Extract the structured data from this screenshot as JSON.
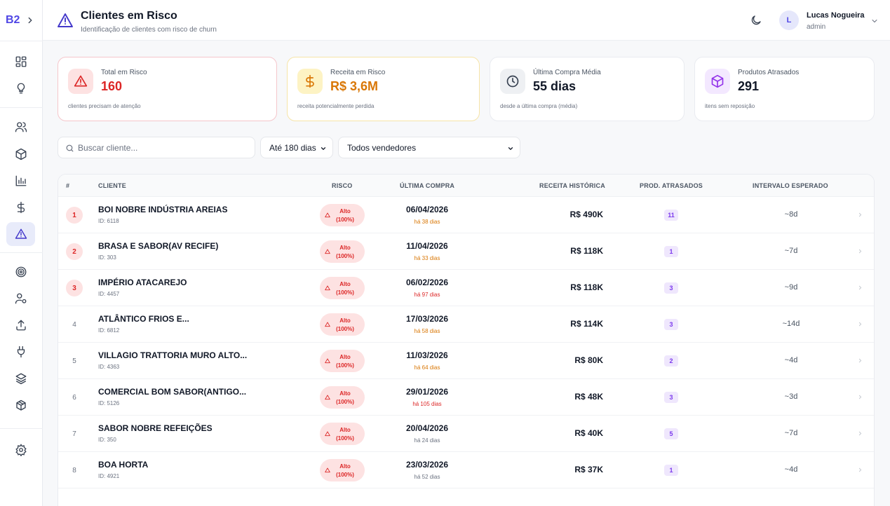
{
  "sidebar": {
    "brand": "B2",
    "items": [
      {
        "icon": "dashboard-icon"
      },
      {
        "icon": "lightbulb-icon"
      },
      {
        "icon": "users-icon"
      },
      {
        "icon": "package-icon"
      },
      {
        "icon": "bar-chart-icon"
      },
      {
        "icon": "dollar-icon"
      },
      {
        "icon": "alert-triangle-icon",
        "active": true
      },
      {
        "icon": "target-icon"
      },
      {
        "icon": "user-settings-icon"
      },
      {
        "icon": "upload-icon"
      },
      {
        "icon": "plug-icon"
      },
      {
        "icon": "layers-icon"
      },
      {
        "icon": "boxes-icon"
      },
      {
        "icon": "settings-icon"
      }
    ]
  },
  "header": {
    "title": "Clientes em Risco",
    "subtitle": "Identificação de clientes com risco de churn",
    "user": {
      "initial": "L",
      "name": "Lucas Nogueira",
      "role": "admin"
    }
  },
  "stats": [
    {
      "label": "Total em Risco",
      "value": "160",
      "foot": "clientes precisam de atenção",
      "color": "#dc2626"
    },
    {
      "label": "Receita em Risco",
      "value": "R$ 3,6M",
      "foot": "receita potencialmente perdida",
      "color": "#d97706"
    },
    {
      "label": "Última Compra Média",
      "value": "55 dias",
      "foot": "desde a última compra (média)",
      "color": "#111827"
    },
    {
      "label": "Produtos Atrasados",
      "value": "291",
      "foot": "itens sem reposição",
      "color": "#111827"
    }
  ],
  "filters": {
    "search_placeholder": "Buscar cliente...",
    "period": "Até 180 dias",
    "seller": "Todos vendedores"
  },
  "table": {
    "headers": {
      "num": "#",
      "client": "CLIENTE",
      "risk": "RISCO",
      "last": "ÚLTIMA COMPRA",
      "revenue": "RECEITA HISTÓRICA",
      "late": "PROD. ATRASADOS",
      "interval": "INTERVALO ESPERADO"
    },
    "rows": [
      {
        "rank": "1",
        "name": "BOI NOBRE INDÚSTRIA AREIAS",
        "id": "ID: 6118",
        "risk1": "Alto",
        "risk2": "(100%)",
        "date": "06/04/2026",
        "ago": "há 38 dias",
        "ago_color": "#d97706",
        "revenue": "R$ 490K",
        "late": "11",
        "interval": "~8d"
      },
      {
        "rank": "2",
        "name": "BRASA E SABOR(AV RECIFE)",
        "id": "ID: 303",
        "risk1": "Alto",
        "risk2": "(100%)",
        "date": "11/04/2026",
        "ago": "há 33 dias",
        "ago_color": "#d97706",
        "revenue": "R$ 118K",
        "late": "1",
        "interval": "~7d"
      },
      {
        "rank": "3",
        "name": "IMPÉRIO ATACAREJO",
        "id": "ID: 4457",
        "risk1": "Alto",
        "risk2": "(100%)",
        "date": "06/02/2026",
        "ago": "há 97 dias",
        "ago_color": "#dc2626",
        "revenue": "R$ 118K",
        "late": "3",
        "interval": "~9d"
      },
      {
        "rank": "4",
        "name": "ATLÂNTICO FRIOS E...",
        "id": "ID: 6812",
        "risk1": "Alto",
        "risk2": "(100%)",
        "date": "17/03/2026",
        "ago": "há 58 dias",
        "ago_color": "#d97706",
        "revenue": "R$ 114K",
        "late": "3",
        "interval": "~14d"
      },
      {
        "rank": "5",
        "name": "VILLAGIO TRATTORIA MURO ALTO...",
        "id": "ID: 4363",
        "risk1": "Alto",
        "risk2": "(100%)",
        "date": "11/03/2026",
        "ago": "há 64 dias",
        "ago_color": "#d97706",
        "revenue": "R$ 80K",
        "late": "2",
        "interval": "~4d"
      },
      {
        "rank": "6",
        "name": "COMERCIAL BOM SABOR(ANTIGO...",
        "id": "ID: 5126",
        "risk1": "Alto",
        "risk2": "(100%)",
        "date": "29/01/2026",
        "ago": "há 105 dias",
        "ago_color": "#dc2626",
        "revenue": "R$ 48K",
        "late": "3",
        "interval": "~3d"
      },
      {
        "rank": "7",
        "name": "SABOR NOBRE REFEIÇÕES",
        "id": "ID: 350",
        "risk1": "Alto",
        "risk2": "(100%)",
        "date": "20/04/2026",
        "ago": "há 24 dias",
        "ago_color": "#6b7280",
        "revenue": "R$ 40K",
        "late": "5",
        "interval": "~7d"
      },
      {
        "rank": "8",
        "name": "BOA HORTA",
        "id": "ID: 4921",
        "risk1": "Alto",
        "risk2": "(100%)",
        "date": "23/03/2026",
        "ago": "há 52 dias",
        "ago_color": "#6b7280",
        "revenue": "R$ 37K",
        "late": "1",
        "interval": "~4d"
      }
    ]
  }
}
